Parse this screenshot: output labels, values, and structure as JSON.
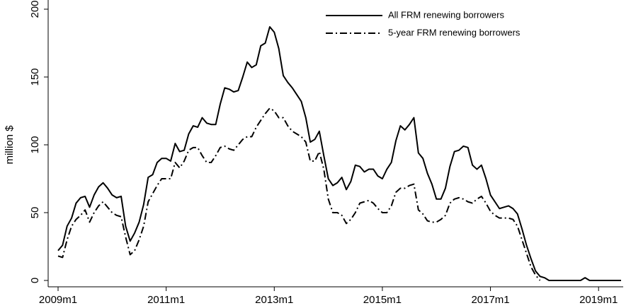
{
  "chart_data": {
    "type": "line",
    "y_label": "million $",
    "x": [
      "2009m1",
      "2009m2",
      "2009m3",
      "2009m4",
      "2009m5",
      "2009m6",
      "2009m7",
      "2009m8",
      "2009m9",
      "2009m10",
      "2009m11",
      "2009m12",
      "2010m1",
      "2010m2",
      "2010m3",
      "2010m4",
      "2010m5",
      "2010m6",
      "2010m7",
      "2010m8",
      "2010m9",
      "2010m10",
      "2010m11",
      "2010m12",
      "2011m1",
      "2011m2",
      "2011m3",
      "2011m4",
      "2011m5",
      "2011m6",
      "2011m7",
      "2011m8",
      "2011m9",
      "2011m10",
      "2011m11",
      "2011m12",
      "2012m1",
      "2012m2",
      "2012m3",
      "2012m4",
      "2012m5",
      "2012m6",
      "2012m7",
      "2012m8",
      "2012m9",
      "2012m10",
      "2012m11",
      "2012m12",
      "2013m1",
      "2013m2",
      "2013m3",
      "2013m4",
      "2013m5",
      "2013m6",
      "2013m7",
      "2013m8",
      "2013m9",
      "2013m10",
      "2013m11",
      "2013m12",
      "2014m1",
      "2014m2",
      "2014m3",
      "2014m4",
      "2014m5",
      "2014m6",
      "2014m7",
      "2014m8",
      "2014m9",
      "2014m10",
      "2014m11",
      "2014m12",
      "2015m1",
      "2015m2",
      "2015m3",
      "2015m4",
      "2015m5",
      "2015m6",
      "2015m7",
      "2015m8",
      "2015m9",
      "2015m10",
      "2015m11",
      "2015m12",
      "2016m1",
      "2016m2",
      "2016m3",
      "2016m4",
      "2016m5",
      "2016m6",
      "2016m7",
      "2016m8",
      "2016m9",
      "2016m10",
      "2016m11",
      "2016m12",
      "2017m1",
      "2017m2",
      "2017m3",
      "2017m4",
      "2017m5",
      "2017m6",
      "2017m7",
      "2017m8",
      "2017m9",
      "2017m10",
      "2017m11",
      "2017m12",
      "2018m1",
      "2018m2",
      "2018m3",
      "2018m4",
      "2018m5",
      "2018m6",
      "2018m7",
      "2018m8",
      "2018m9",
      "2018m10",
      "2018m11",
      "2018m12",
      "2019m1",
      "2019m2",
      "2019m3",
      "2019m4",
      "2019m5",
      "2019m6"
    ],
    "series": [
      {
        "name": "All FRM renewing borrowers",
        "color": "#000000",
        "style": "solid",
        "values": [
          22,
          26,
          40,
          46,
          57,
          61,
          62,
          54,
          63,
          69,
          72,
          68,
          63,
          61,
          62,
          40,
          29,
          35,
          43,
          56,
          76,
          78,
          87,
          90,
          90,
          88,
          101,
          95,
          96,
          108,
          114,
          113,
          120,
          116,
          115,
          115,
          130,
          142,
          141,
          139,
          140,
          150,
          161,
          157,
          159,
          173,
          175,
          187,
          183,
          171,
          151,
          146,
          142,
          137,
          132,
          120,
          102,
          104,
          110,
          92,
          75,
          70,
          72,
          76,
          67,
          73,
          85,
          84,
          80,
          82,
          82,
          77,
          75,
          82,
          87,
          103,
          114,
          111,
          115,
          120,
          94,
          90,
          79,
          71,
          60,
          60,
          68,
          84,
          95,
          96,
          99,
          98,
          85,
          82,
          85,
          75,
          63,
          58,
          53,
          54,
          55,
          53,
          49,
          38,
          26,
          16,
          7,
          3,
          2,
          0,
          0,
          0,
          0,
          0,
          0,
          0,
          0,
          2,
          0,
          0,
          0,
          0,
          0,
          0,
          0,
          0
        ]
      },
      {
        "name": "5-year FRM renewing borrowers",
        "color": "#000000",
        "style": "dashdot",
        "values": [
          18,
          17,
          30,
          40,
          45,
          48,
          52,
          43,
          50,
          55,
          58,
          54,
          50,
          48,
          47,
          32,
          19,
          22,
          30,
          40,
          58,
          64,
          70,
          75,
          75,
          75,
          87,
          83,
          88,
          96,
          98,
          98,
          92,
          87,
          87,
          92,
          98,
          99,
          97,
          96,
          100,
          104,
          106,
          106,
          113,
          118,
          123,
          127,
          125,
          120,
          120,
          114,
          110,
          108,
          106,
          102,
          88,
          88,
          95,
          82,
          60,
          50,
          50,
          48,
          42,
          45,
          50,
          57,
          58,
          59,
          57,
          53,
          50,
          50,
          55,
          65,
          68,
          68,
          70,
          71,
          52,
          49,
          44,
          43,
          43,
          45,
          48,
          57,
          60,
          61,
          60,
          58,
          57,
          60,
          62,
          57,
          51,
          48,
          46,
          46,
          46,
          45,
          40,
          30,
          20,
          10,
          4,
          0,
          null,
          null,
          null,
          null,
          null,
          null,
          null,
          null,
          null,
          null,
          null,
          null,
          null,
          null,
          null,
          null,
          null,
          null
        ]
      }
    ],
    "ylim": [
      0,
      200
    ],
    "yticks": [
      0,
      50,
      100,
      150,
      200
    ],
    "xticks": [
      "2009m1",
      "2011m1",
      "2013m1",
      "2015m1",
      "2017m1",
      "2019m1"
    ],
    "legend": "top-right",
    "grid": false
  }
}
